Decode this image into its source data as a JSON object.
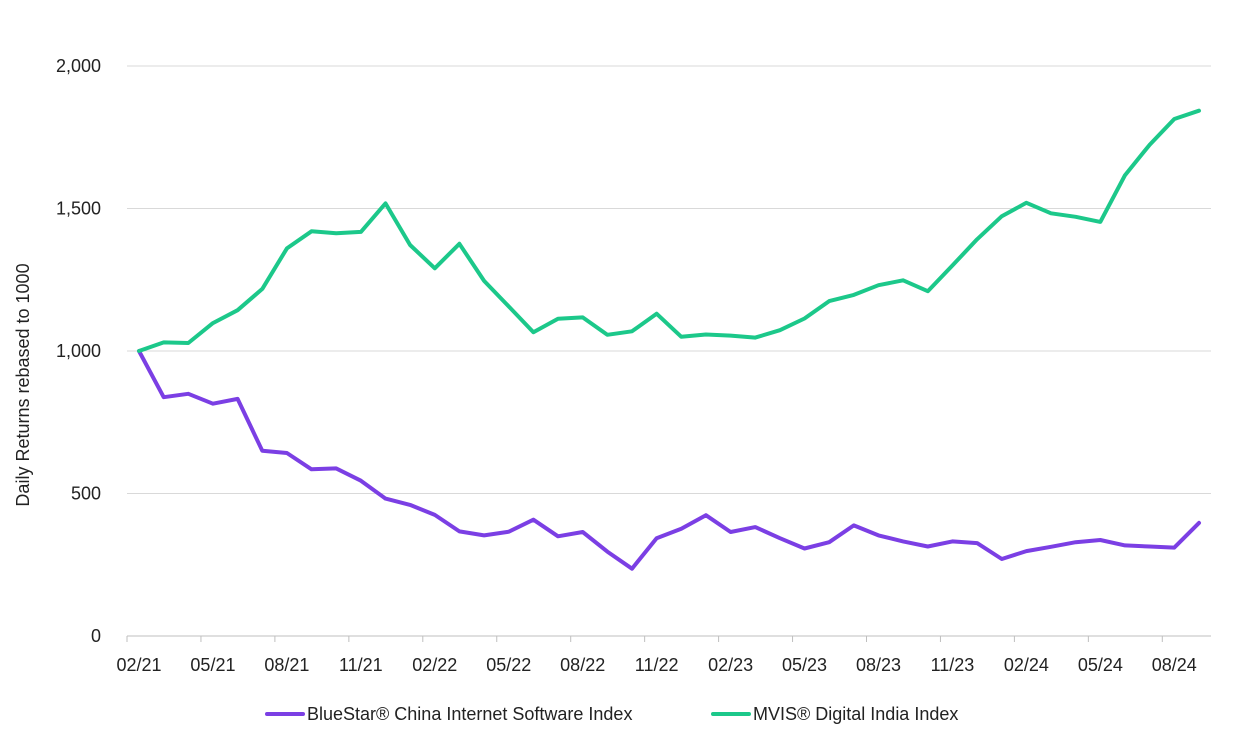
{
  "chart_data": {
    "type": "line",
    "title": "",
    "xlabel": "",
    "ylabel": "Daily Returns rebased to 1000",
    "ylim": [
      0,
      2000
    ],
    "yticks": [
      0,
      500,
      1000,
      1500,
      2000
    ],
    "ytick_labels": [
      "0",
      "500",
      "1,000",
      "1,500",
      "2,000"
    ],
    "xtick_labels": [
      "02/21",
      "05/21",
      "08/21",
      "11/21",
      "02/22",
      "05/22",
      "08/22",
      "11/22",
      "02/23",
      "05/23",
      "08/23",
      "11/23",
      "02/24",
      "05/24",
      "08/24"
    ],
    "x": [
      "02/21",
      "03/21",
      "04/21",
      "05/21",
      "06/21",
      "07/21",
      "08/21",
      "09/21",
      "10/21",
      "11/21",
      "12/21",
      "01/22",
      "02/22",
      "03/22",
      "04/22",
      "05/22",
      "06/22",
      "07/22",
      "08/22",
      "09/22",
      "10/22",
      "11/22",
      "12/22",
      "01/23",
      "02/23",
      "03/23",
      "04/23",
      "05/23",
      "06/23",
      "07/23",
      "08/23",
      "09/23",
      "10/23",
      "11/23",
      "12/23",
      "01/24",
      "02/24",
      "03/24",
      "04/24",
      "05/24",
      "06/24",
      "07/24",
      "08/24",
      "09/24"
    ],
    "grid": true,
    "legend_position": "bottom",
    "series": [
      {
        "name": "BlueStar® China Internet Software Index",
        "color": "#7B3FE4",
        "values": [
          1000,
          838,
          850,
          815,
          832,
          650,
          642,
          585,
          588,
          545,
          482,
          460,
          425,
          367,
          353,
          366,
          408,
          350,
          365,
          296,
          236,
          343,
          376,
          424,
          365,
          382,
          343,
          307,
          329,
          388,
          353,
          332,
          314,
          332,
          326,
          270,
          298,
          313,
          329,
          337,
          318,
          314,
          310,
          397
        ]
      },
      {
        "name": "MVIS® Digital India Index",
        "color": "#1CC88A",
        "values": [
          1000,
          1030,
          1028,
          1098,
          1143,
          1218,
          1360,
          1420,
          1413,
          1418,
          1518,
          1372,
          1290,
          1376,
          1246,
          1156,
          1066,
          1113,
          1118,
          1057,
          1069,
          1131,
          1050,
          1058,
          1054,
          1047,
          1073,
          1114,
          1175,
          1197,
          1231,
          1248,
          1210,
          1300,
          1392,
          1473,
          1520,
          1483,
          1471,
          1453,
          1617,
          1724,
          1814,
          1843
        ]
      }
    ]
  }
}
